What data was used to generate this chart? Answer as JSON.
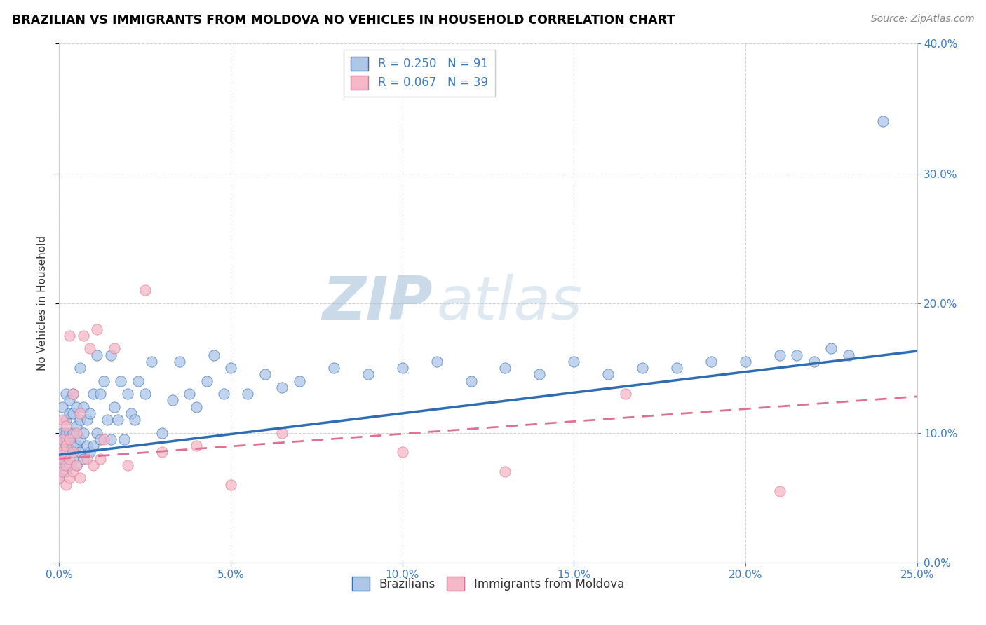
{
  "title": "BRAZILIAN VS IMMIGRANTS FROM MOLDOVA NO VEHICLES IN HOUSEHOLD CORRELATION CHART",
  "source": "Source: ZipAtlas.com",
  "ylabel": "No Vehicles in Household",
  "r_brazilian": 0.25,
  "n_brazilian": 91,
  "r_moldova": 0.067,
  "n_moldova": 39,
  "blue_color": "#aec6e8",
  "pink_color": "#f5b8c8",
  "blue_line_color": "#2e6db4",
  "pink_line_color": "#e07090",
  "legend_label1": "Brazilians",
  "legend_label2": "Immigrants from Moldova",
  "watermark_1": "ZIP",
  "watermark_2": "atlas",
  "x_lim": [
    0.0,
    0.25
  ],
  "y_lim": [
    0.0,
    0.4
  ],
  "blue_scatter_x": [
    0.0,
    0.0,
    0.001,
    0.001,
    0.001,
    0.001,
    0.001,
    0.002,
    0.002,
    0.002,
    0.002,
    0.002,
    0.002,
    0.003,
    0.003,
    0.003,
    0.003,
    0.003,
    0.003,
    0.004,
    0.004,
    0.004,
    0.004,
    0.004,
    0.005,
    0.005,
    0.005,
    0.005,
    0.006,
    0.006,
    0.006,
    0.006,
    0.007,
    0.007,
    0.007,
    0.008,
    0.008,
    0.009,
    0.009,
    0.01,
    0.01,
    0.011,
    0.011,
    0.012,
    0.012,
    0.013,
    0.014,
    0.015,
    0.015,
    0.016,
    0.017,
    0.018,
    0.019,
    0.02,
    0.021,
    0.022,
    0.023,
    0.025,
    0.027,
    0.03,
    0.033,
    0.035,
    0.038,
    0.04,
    0.043,
    0.045,
    0.048,
    0.05,
    0.055,
    0.06,
    0.065,
    0.07,
    0.08,
    0.09,
    0.1,
    0.11,
    0.12,
    0.13,
    0.14,
    0.15,
    0.16,
    0.17,
    0.18,
    0.19,
    0.2,
    0.21,
    0.215,
    0.22,
    0.225,
    0.23,
    0.24
  ],
  "blue_scatter_y": [
    0.065,
    0.075,
    0.08,
    0.09,
    0.095,
    0.1,
    0.12,
    0.07,
    0.085,
    0.095,
    0.1,
    0.11,
    0.13,
    0.075,
    0.085,
    0.095,
    0.1,
    0.115,
    0.125,
    0.08,
    0.09,
    0.1,
    0.115,
    0.13,
    0.075,
    0.09,
    0.105,
    0.12,
    0.085,
    0.095,
    0.11,
    0.15,
    0.08,
    0.1,
    0.12,
    0.09,
    0.11,
    0.085,
    0.115,
    0.09,
    0.13,
    0.1,
    0.16,
    0.095,
    0.13,
    0.14,
    0.11,
    0.095,
    0.16,
    0.12,
    0.11,
    0.14,
    0.095,
    0.13,
    0.115,
    0.11,
    0.14,
    0.13,
    0.155,
    0.1,
    0.125,
    0.155,
    0.13,
    0.12,
    0.14,
    0.16,
    0.13,
    0.15,
    0.13,
    0.145,
    0.135,
    0.14,
    0.15,
    0.145,
    0.15,
    0.155,
    0.14,
    0.15,
    0.145,
    0.155,
    0.145,
    0.15,
    0.15,
    0.155,
    0.155,
    0.16,
    0.16,
    0.155,
    0.165,
    0.16,
    0.34
  ],
  "pink_scatter_x": [
    0.0,
    0.0,
    0.001,
    0.001,
    0.001,
    0.001,
    0.002,
    0.002,
    0.002,
    0.002,
    0.003,
    0.003,
    0.003,
    0.003,
    0.004,
    0.004,
    0.004,
    0.005,
    0.005,
    0.006,
    0.006,
    0.007,
    0.008,
    0.009,
    0.01,
    0.011,
    0.012,
    0.013,
    0.016,
    0.02,
    0.025,
    0.03,
    0.04,
    0.05,
    0.065,
    0.1,
    0.13,
    0.165,
    0.21
  ],
  "pink_scatter_y": [
    0.065,
    0.08,
    0.07,
    0.085,
    0.095,
    0.11,
    0.06,
    0.075,
    0.09,
    0.105,
    0.065,
    0.08,
    0.095,
    0.175,
    0.07,
    0.085,
    0.13,
    0.075,
    0.1,
    0.065,
    0.115,
    0.175,
    0.08,
    0.165,
    0.075,
    0.18,
    0.08,
    0.095,
    0.165,
    0.075,
    0.21,
    0.085,
    0.09,
    0.06,
    0.1,
    0.085,
    0.07,
    0.13,
    0.055
  ],
  "blue_line_start_y": 0.083,
  "blue_line_end_y": 0.163,
  "pink_line_start_y": 0.08,
  "pink_line_end_y": 0.128
}
